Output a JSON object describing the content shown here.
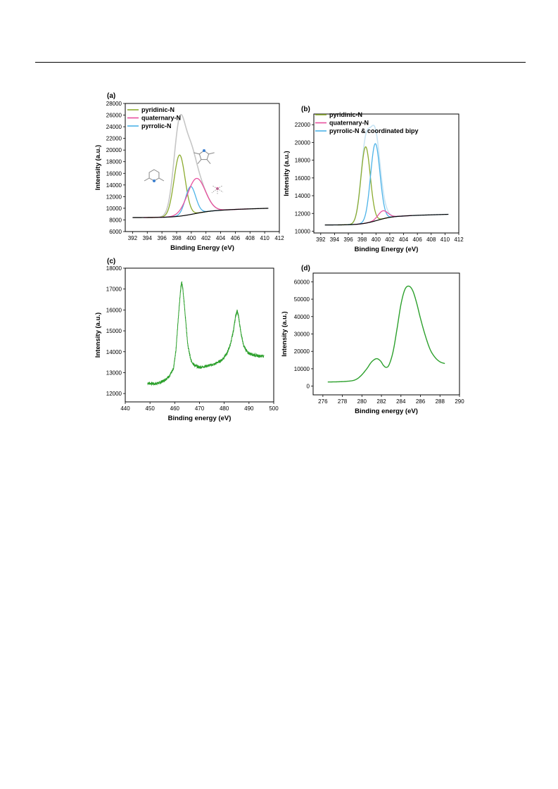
{
  "colors": {
    "pyridinic": "#8bab2e",
    "quaternary": "#e8509e",
    "pyrrolic": "#4db3e8",
    "envelope": "#c6c6c6",
    "envelope_b": "#c8e4f4",
    "baseline": "#000000",
    "green": "#2ca02c",
    "molecule_grey": "#888888",
    "molecule_blue": "#3a7fd0"
  },
  "chart_data": [
    {
      "id": "a",
      "panel_label": "(a)",
      "type": "line",
      "xlabel": "Binding Energy (eV)",
      "ylabel": "Intensity (a.u.)",
      "xlim": [
        391,
        412
      ],
      "ylim": [
        6000,
        28000
      ],
      "xticks": [
        392,
        394,
        396,
        398,
        400,
        402,
        404,
        406,
        408,
        410,
        412
      ],
      "yticks": [
        6000,
        8000,
        10000,
        12000,
        14000,
        16000,
        18000,
        20000,
        22000,
        24000,
        26000,
        28000
      ],
      "legend_position": "top-left",
      "legend": [
        {
          "label": "pyridinic-N",
          "color": "#8bab2e"
        },
        {
          "label": "quaternary-N",
          "color": "#e8509e"
        },
        {
          "label": "pyrrolic-N",
          "color": "#4db3e8"
        }
      ],
      "x_range": [
        392,
        410.5
      ],
      "baseline": {
        "low": 8400,
        "high": 9750,
        "center": 400.5,
        "width": 1.4,
        "end_value": 10000
      },
      "components": [
        {
          "name": "pyridinic-N",
          "center": 398.4,
          "height": 10500,
          "sigma": 0.75,
          "color": "#8bab2e"
        },
        {
          "name": "pyrrolic-N",
          "center": 399.9,
          "height": 4800,
          "sigma": 0.7,
          "color": "#4db3e8"
        },
        {
          "name": "quaternary-N",
          "center": 400.7,
          "height": 6000,
          "sigma": 1.2,
          "color": "#e8509e"
        }
      ],
      "envelope_color": "#c6c6c6",
      "envelope_peak": {
        "x": 398.5,
        "y": 26000
      }
    },
    {
      "id": "b",
      "panel_label": "(b)",
      "type": "line",
      "xlabel": "Binding Energy (eV)",
      "ylabel": "Intensity (a.u.)",
      "xlim": [
        391,
        412
      ],
      "ylim": [
        9800,
        23200
      ],
      "xticks": [
        392,
        394,
        396,
        398,
        400,
        402,
        404,
        406,
        408,
        410,
        412
      ],
      "yticks": [
        10000,
        12000,
        14000,
        16000,
        18000,
        20000,
        22000
      ],
      "legend_position": "top-left",
      "legend": [
        {
          "label": "pyridinic-N",
          "color": "#8bab2e"
        },
        {
          "label": "quaternary-N",
          "color": "#e8509e"
        },
        {
          "label": "pyrrolic-N & coordinated bipy",
          "color": "#4db3e8"
        }
      ],
      "x_range": [
        392.6,
        410.5
      ],
      "baseline": {
        "low": 10700,
        "high": 11750,
        "center": 400.2,
        "width": 1.2,
        "end_value": 11900
      },
      "components": [
        {
          "name": "pyridinic-N",
          "center": 398.5,
          "height": 8600,
          "sigma": 0.68,
          "color": "#8bab2e"
        },
        {
          "name": "pyrrolic-N & coordinated bipy",
          "center": 399.9,
          "height": 8700,
          "sigma": 0.68,
          "color": "#4db3e8"
        },
        {
          "name": "quaternary-N",
          "center": 401.0,
          "height": 900,
          "sigma": 0.7,
          "color": "#e8509e"
        }
      ],
      "envelope_color": "#c8e4f4",
      "envelope_peak": {
        "x": 399.5,
        "y": 21900
      }
    },
    {
      "id": "c",
      "panel_label": "(c)",
      "type": "line",
      "xlabel": "Binding energy (eV)",
      "ylabel": "Intensity (a.u.)",
      "xlim": [
        440,
        500
      ],
      "ylim": [
        11600,
        18000
      ],
      "xticks": [
        440,
        450,
        460,
        470,
        480,
        490,
        500
      ],
      "yticks": [
        12000,
        13000,
        14000,
        15000,
        16000,
        17000,
        18000
      ],
      "x": [
        449,
        452,
        454,
        456,
        458,
        459.5,
        460.5,
        461.5,
        462.3,
        462.8,
        463.3,
        464.2,
        465.3,
        466.5,
        468,
        470,
        473,
        476,
        479,
        481,
        482.5,
        483.7,
        484.6,
        485.2,
        485.8,
        486.6,
        487.8,
        489.5,
        492,
        494,
        496
      ],
      "y": [
        12500,
        12460,
        12520,
        12650,
        12850,
        13200,
        14100,
        15700,
        16900,
        17350,
        17000,
        15800,
        14300,
        13600,
        13350,
        13250,
        13320,
        13400,
        13600,
        13900,
        14350,
        15000,
        15700,
        15950,
        15700,
        15000,
        14300,
        13950,
        13850,
        13800,
        13800
      ],
      "noise": 70,
      "color": "#2ca02c"
    },
    {
      "id": "d",
      "panel_label": "(d)",
      "type": "line",
      "xlabel": "Binding energy (eV)",
      "ylabel": "Intensity (a.u.)",
      "xlim": [
        275,
        290
      ],
      "ylim": [
        -5000,
        65000
      ],
      "xticks": [
        276,
        278,
        280,
        282,
        284,
        286,
        288,
        290
      ],
      "yticks": [
        0,
        10000,
        20000,
        30000,
        40000,
        50000,
        60000
      ],
      "x": [
        276.5,
        277.5,
        278.5,
        279.3,
        279.9,
        280.5,
        281.0,
        281.5,
        281.9,
        282.2,
        282.5,
        282.8,
        283.2,
        283.6,
        284.0,
        284.4,
        284.8,
        285.2,
        285.6,
        286.0,
        286.5,
        287.0,
        287.5,
        288.0,
        288.5
      ],
      "y": [
        2400,
        2500,
        2800,
        3600,
        6000,
        10000,
        14000,
        15800,
        14500,
        12000,
        10800,
        12500,
        20000,
        33000,
        47000,
        55500,
        57500,
        55000,
        48000,
        39000,
        29000,
        21000,
        16500,
        14000,
        13000
      ],
      "color": "#2ca02c"
    }
  ]
}
